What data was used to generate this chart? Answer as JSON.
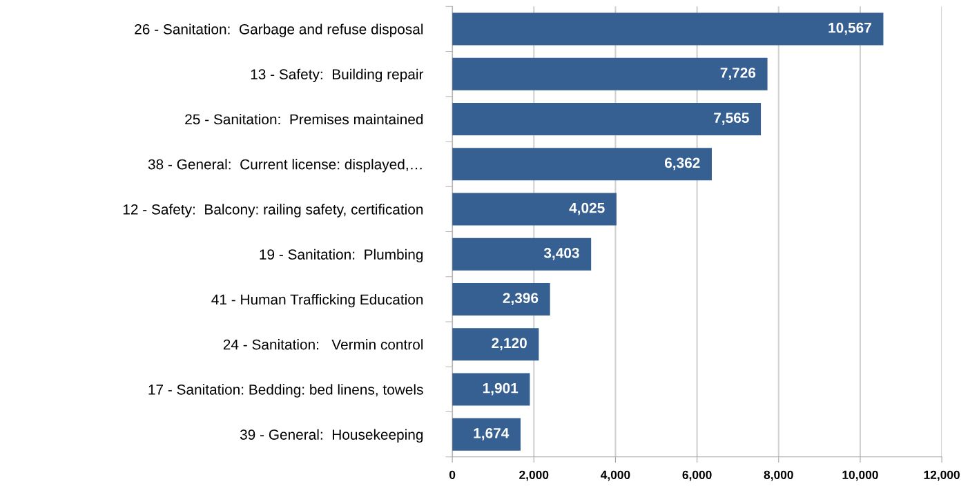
{
  "chart_data": {
    "type": "bar",
    "orientation": "horizontal",
    "categories": [
      "26 - Sanitation:  Garbage and refuse disposal",
      "13 - Safety:  Building repair",
      "25 - Sanitation:  Premises maintained",
      "38 - General:  Current license: displayed,…",
      "12 - Safety:  Balcony: railing safety, certification",
      "19 - Sanitation:  Plumbing",
      "41 - Human Trafficking Education",
      "24 - Sanitation:   Vermin control",
      "17 - Sanitation: Bedding: bed linens, towels",
      "39 - General:  Housekeeping"
    ],
    "values": [
      10567,
      7726,
      7565,
      6362,
      4025,
      3403,
      2396,
      2120,
      1901,
      1674
    ],
    "value_labels": [
      "10,567",
      "7,726",
      "7,565",
      "6,362",
      "4,025",
      "3,403",
      "2,396",
      "2,120",
      "1,901",
      "1,674"
    ],
    "color": "#376092",
    "xlim": [
      0,
      12000
    ],
    "xticks": [
      0,
      {
        "value": 2000,
        "label": "2,000"
      },
      {
        "value": 4000,
        "label": "4,000"
      },
      {
        "value": 6000,
        "label": "6,000"
      },
      {
        "value": 8000,
        "label": "8,000"
      },
      {
        "value": 10000,
        "label": "10,000"
      },
      {
        "value": 12000,
        "label": "12,000"
      }
    ],
    "grid": "x"
  }
}
